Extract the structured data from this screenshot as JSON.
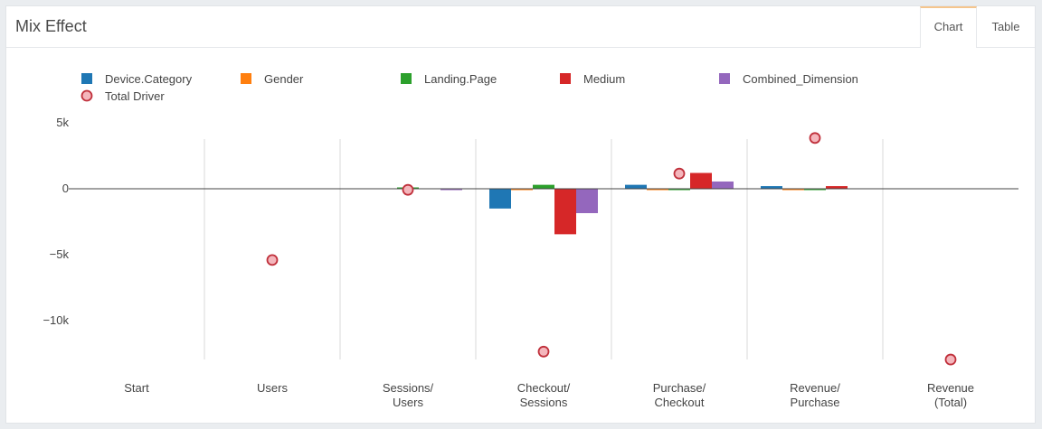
{
  "panel": {
    "title": "Mix Effect"
  },
  "tabs": [
    {
      "label": "Chart",
      "active": true
    },
    {
      "label": "Table",
      "active": false
    }
  ],
  "chart_data": {
    "type": "bar",
    "categories": [
      "Start",
      "Users",
      "Sessions/\nUsers",
      "Checkout/\nSessions",
      "Purchase/\nCheckout",
      "Revenue/\nPurchase",
      "Revenue\n(Total)"
    ],
    "series": [
      {
        "name": "Device.Category",
        "color": "#1f77b4",
        "values": [
          0,
          0,
          0,
          -1500,
          300,
          200,
          0
        ]
      },
      {
        "name": "Gender",
        "color": "#ff7f0e",
        "values": [
          0,
          0,
          0,
          -100,
          -70,
          -100,
          0
        ]
      },
      {
        "name": "Landing.Page",
        "color": "#2ca02c",
        "values": [
          0,
          0,
          80,
          300,
          -70,
          -100,
          0
        ]
      },
      {
        "name": "Medium",
        "color": "#d62728",
        "values": [
          0,
          0,
          0,
          -3450,
          1200,
          200,
          0
        ]
      },
      {
        "name": "Combined_Dimension",
        "color": "#9467bd",
        "values": [
          0,
          0,
          -50,
          -1850,
          550,
          0,
          0
        ]
      }
    ],
    "total_driver": {
      "name": "Total Driver",
      "marker_fill": "#f4b6bc",
      "marker_stroke": "#c0303b",
      "values": [
        null,
        -5400,
        -80,
        -12350,
        1150,
        3850,
        -12950
      ]
    },
    "yticks": [
      5000,
      0,
      -5000,
      -10000
    ],
    "ytick_labels": [
      "5k",
      "0",
      "−5k",
      "−10k"
    ],
    "ylim": [
      -13000,
      5000
    ],
    "legend_position": "top-left",
    "vertical_gridlines": true
  }
}
